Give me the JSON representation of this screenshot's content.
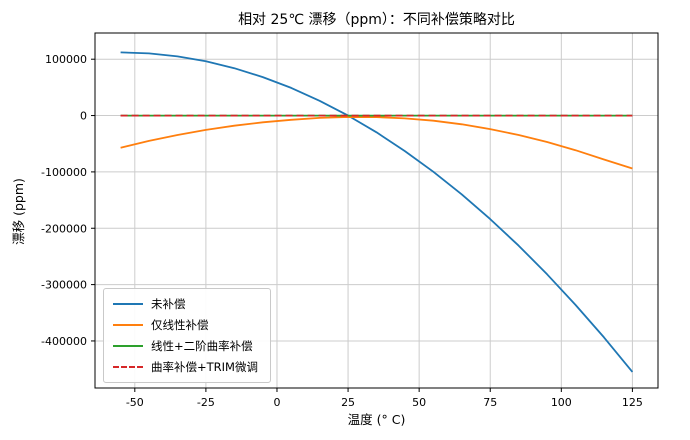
{
  "chart_data": {
    "type": "line",
    "title": "相对 25℃ 漂移（ppm）：不同补偿策略对比",
    "xlabel": "温度 (° C)",
    "ylabel": "漂移 (ppm)",
    "grid": true,
    "legend_position": "lower-left",
    "xlim": [
      -64,
      134
    ],
    "ylim": [
      -483500,
      146500
    ],
    "x_ticks": [
      -50,
      -25,
      0,
      25,
      50,
      75,
      100,
      125
    ],
    "x_tick_labels": [
      "-50",
      "-25",
      "0",
      "25",
      "50",
      "75",
      "100",
      "125"
    ],
    "y_ticks": [
      100000,
      0,
      -100000,
      -200000,
      -300000,
      -400000
    ],
    "y_tick_labels": [
      "100000",
      "0",
      "-100000",
      "-200000",
      "-300000",
      "-400000"
    ],
    "x": [
      -55,
      -45,
      -35,
      -25,
      -15,
      -5,
      5,
      15,
      25,
      35,
      45,
      55,
      65,
      75,
      85,
      95,
      105,
      115,
      125
    ],
    "series": [
      {
        "name": "未补偿",
        "color": "#1f77b4",
        "style": "solid",
        "values": [
          112000,
          110250,
          105000,
          96250,
          84000,
          68250,
          49000,
          26250,
          0,
          -29750,
          -63000,
          -99750,
          -140000,
          -183750,
          -231000,
          -281750,
          -336000,
          -393750,
          -455000
        ]
      },
      {
        "name": "仅线性补偿",
        "color": "#ff7f0e",
        "style": "solid",
        "values": [
          -57000,
          -45000,
          -34500,
          -25500,
          -18000,
          -12000,
          -7500,
          -4200,
          -2500,
          -2800,
          -5000,
          -9200,
          -15500,
          -24000,
          -34500,
          -47000,
          -61500,
          -78000,
          -94000
        ]
      },
      {
        "name": "线性+二阶曲率补偿",
        "color": "#2ca02c",
        "style": "solid",
        "values": [
          0,
          0,
          0,
          0,
          0,
          0,
          0,
          0,
          0,
          0,
          0,
          0,
          0,
          0,
          0,
          0,
          0,
          0,
          0
        ]
      },
      {
        "name": "曲率补偿+TRIM微调",
        "color": "#d62728",
        "style": "dashed",
        "values": [
          0,
          0,
          0,
          0,
          0,
          0,
          0,
          0,
          0,
          0,
          0,
          0,
          0,
          0,
          0,
          0,
          0,
          0,
          0
        ]
      }
    ],
    "colors": {
      "grid": "#cccccc",
      "spine": "#000000",
      "background": "#ffffff"
    }
  }
}
